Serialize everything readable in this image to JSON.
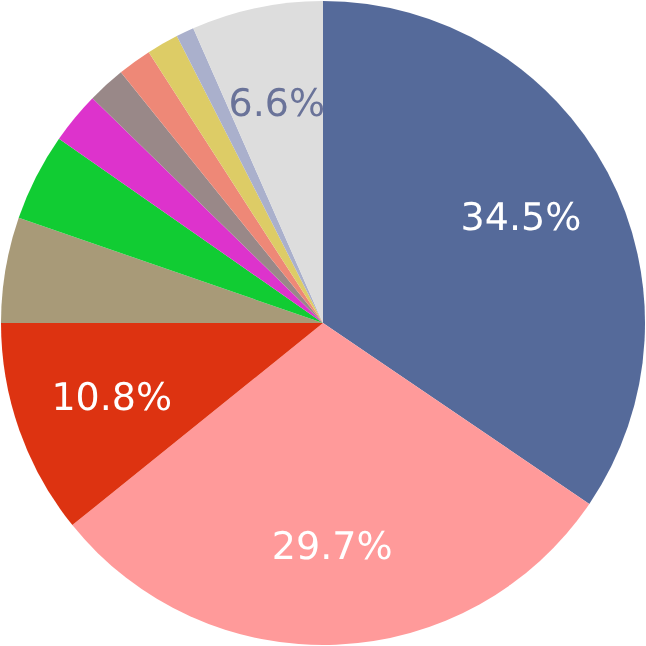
{
  "chart_data": {
    "type": "pie",
    "categories": [
      null,
      null,
      null,
      null,
      null,
      null,
      null,
      null,
      null,
      null,
      null
    ],
    "values": [
      34.5,
      29.7,
      10.8,
      5.3,
      4.4,
      2.6,
      1.9,
      1.7,
      1.6,
      0.9,
      6.6
    ],
    "colors": [
      "#556a9a",
      "#ff9a9a",
      "#dd3311",
      "#a89a78",
      "#11cc33",
      "#dd33cc",
      "#998888",
      "#ee8877",
      "#ddcc66",
      "#aab0cc",
      "#dddddd"
    ],
    "value_labels": [
      "34.5%",
      "29.7%",
      "10.8%",
      null,
      null,
      null,
      null,
      null,
      null,
      null,
      "6.6%"
    ]
  }
}
